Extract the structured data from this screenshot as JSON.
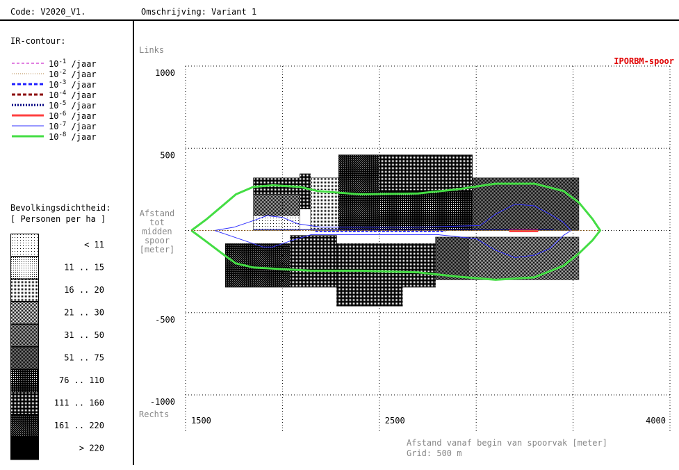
{
  "header": {
    "code": "Code: V2020_V1.",
    "description": "Omschrijving: Variant 1"
  },
  "legend_ir": {
    "title": "IR-contour:",
    "unit": "/jaar",
    "items": [
      {
        "base": "10",
        "exp": "-1",
        "color": "#c000c0",
        "style": "dash-thin"
      },
      {
        "base": "10",
        "exp": "-2",
        "color": "#b08040",
        "style": "dot-thin"
      },
      {
        "base": "10",
        "exp": "-3",
        "color": "#2020ff",
        "style": "dash-thick"
      },
      {
        "base": "10",
        "exp": "-4",
        "color": "#8b0000",
        "style": "dash-thick"
      },
      {
        "base": "10",
        "exp": "-5",
        "color": "#000080",
        "style": "dot-thick"
      },
      {
        "base": "10",
        "exp": "-6",
        "color": "#ff4040",
        "style": "solid-thick"
      },
      {
        "base": "10",
        "exp": "-7",
        "color": "#3030ff",
        "style": "solid-thin"
      },
      {
        "base": "10",
        "exp": "-8",
        "color": "#44dd44",
        "style": "solid-thick"
      }
    ]
  },
  "legend_density": {
    "title": "Bevolkingsdichtheid:",
    "subtitle": "[ Personen per ha ]",
    "classes": [
      {
        "label": "<  11",
        "pattern": "p1"
      },
      {
        "label": "11 ..  15",
        "pattern": "p2"
      },
      {
        "label": "16 ..  20",
        "pattern": "p3"
      },
      {
        "label": "21 ..  30",
        "pattern": "p4"
      },
      {
        "label": "31 ..  50",
        "pattern": "p5"
      },
      {
        "label": "51 ..  75",
        "pattern": "p6"
      },
      {
        "label": "76 .. 110",
        "pattern": "p7"
      },
      {
        "label": "111 .. 160",
        "pattern": "p8"
      },
      {
        "label": "161 .. 220",
        "pattern": "p9"
      },
      {
        "label": "> 220",
        "pattern": "p10"
      }
    ]
  },
  "chart_data": {
    "type": "area",
    "title": "IPORBM-spoor",
    "ylabel_top": "Links",
    "ylabel_bottom": "Rechts",
    "ylabel_mid": [
      "Afstand",
      "tot",
      "midden",
      "spoor",
      "[meter]"
    ],
    "xlabel": "Afstand vanaf begin van spoorvak  [meter]",
    "grid_note": "Grid: 500 m",
    "xlim": [
      1500,
      4000
    ],
    "ylim": [
      -1000,
      1000
    ],
    "x_ticks": [
      {
        "value": 1500,
        "label": "1500"
      },
      {
        "value": 2500,
        "label": "2500"
      },
      {
        "value": 4000,
        "label": "4000"
      }
    ],
    "y_ticks": [
      {
        "value": 1000,
        "label": "1000"
      },
      {
        "value": 500,
        "label": "500"
      },
      {
        "value": -500,
        "label": "-500"
      },
      {
        "value": -1000,
        "label": "-1000"
      }
    ],
    "grid_step": 500,
    "grid": true,
    "density_blocks": [
      {
        "x0": 1850,
        "x1": 2090,
        "y0": 320,
        "y1": 220,
        "pattern": "p8"
      },
      {
        "x0": 1850,
        "x1": 2090,
        "y0": 220,
        "y1": 90,
        "pattern": "p5"
      },
      {
        "x0": 1850,
        "x1": 2090,
        "y0": 90,
        "y1": 0,
        "pattern": "p1"
      },
      {
        "x0": 2090,
        "x1": 2145,
        "y0": 345,
        "y1": 130,
        "pattern": "p8"
      },
      {
        "x0": 2145,
        "x1": 2290,
        "y0": 320,
        "y1": 0,
        "pattern": "p3"
      },
      {
        "x0": 2290,
        "x1": 2500,
        "y0": 460,
        "y1": 0,
        "pattern": "p9"
      },
      {
        "x0": 2500,
        "x1": 2980,
        "y0": 460,
        "y1": 240,
        "pattern": "p8"
      },
      {
        "x0": 2500,
        "x1": 2980,
        "y0": 240,
        "y1": 0,
        "pattern": "p7"
      },
      {
        "x0": 2980,
        "x1": 3530,
        "y0": 320,
        "y1": 0,
        "pattern": "p6"
      },
      {
        "x0": 1705,
        "x1": 2040,
        "y0": -80,
        "y1": -345,
        "pattern": "p9"
      },
      {
        "x0": 2040,
        "x1": 2280,
        "y0": -30,
        "y1": -345,
        "pattern": "p8"
      },
      {
        "x0": 2280,
        "x1": 2620,
        "y0": -80,
        "y1": -460,
        "pattern": "p8"
      },
      {
        "x0": 2620,
        "x1": 2790,
        "y0": -80,
        "y1": -345,
        "pattern": "p8"
      },
      {
        "x0": 2790,
        "x1": 2960,
        "y0": -40,
        "y1": -300,
        "pattern": "p6"
      },
      {
        "x0": 2960,
        "x1": 3530,
        "y0": -40,
        "y1": -300,
        "pattern": "p5"
      }
    ],
    "contours": [
      {
        "exp": "-8",
        "color": "#44dd44",
        "width": 3,
        "points": [
          [
            1530,
            0
          ],
          [
            1610,
            70
          ],
          [
            1700,
            160
          ],
          [
            1760,
            220
          ],
          [
            1850,
            265
          ],
          [
            1950,
            275
          ],
          [
            2090,
            265
          ],
          [
            2180,
            240
          ],
          [
            2400,
            220
          ],
          [
            2700,
            225
          ],
          [
            2900,
            250
          ],
          [
            3100,
            285
          ],
          [
            3300,
            285
          ],
          [
            3450,
            240
          ],
          [
            3530,
            170
          ],
          [
            3600,
            70
          ],
          [
            3640,
            0
          ],
          [
            3600,
            -60
          ],
          [
            3530,
            -140
          ],
          [
            3450,
            -215
          ],
          [
            3300,
            -285
          ],
          [
            3100,
            -300
          ],
          [
            2900,
            -280
          ],
          [
            2700,
            -255
          ],
          [
            2400,
            -245
          ],
          [
            2150,
            -245
          ],
          [
            2000,
            -235
          ],
          [
            1850,
            -225
          ],
          [
            1760,
            -200
          ],
          [
            1700,
            -150
          ],
          [
            1610,
            -70
          ],
          [
            1530,
            0
          ]
        ]
      },
      {
        "exp": "-7",
        "color": "#3030ff",
        "width": 1,
        "points": [
          [
            1650,
            0
          ],
          [
            1750,
            20
          ],
          [
            1850,
            60
          ],
          [
            1920,
            90
          ],
          [
            2000,
            80
          ],
          [
            2080,
            40
          ],
          [
            2200,
            20
          ],
          [
            2700,
            20
          ],
          [
            3020,
            30
          ],
          [
            3100,
            100
          ],
          [
            3200,
            160
          ],
          [
            3300,
            150
          ],
          [
            3380,
            100
          ],
          [
            3450,
            50
          ],
          [
            3490,
            0
          ],
          [
            3450,
            -30
          ],
          [
            3380,
            -110
          ],
          [
            3300,
            -150
          ],
          [
            3200,
            -165
          ],
          [
            3100,
            -120
          ],
          [
            3000,
            -50
          ],
          [
            2800,
            -25
          ],
          [
            2300,
            -25
          ],
          [
            2150,
            -25
          ],
          [
            2050,
            -60
          ],
          [
            1950,
            -100
          ],
          [
            1900,
            -100
          ],
          [
            1800,
            -60
          ],
          [
            1700,
            -20
          ],
          [
            1650,
            0
          ]
        ]
      },
      {
        "exp": "-6",
        "color": "#ff4040",
        "width": 5,
        "points": [
          [
            3170,
            0
          ],
          [
            3320,
            0
          ]
        ]
      },
      {
        "exp": "-3",
        "color": "#2020ff",
        "width": 2,
        "dash": "4,2",
        "points": [
          [
            2170,
            -5
          ],
          [
            2840,
            -5
          ]
        ]
      },
      {
        "exp": "-2",
        "color": "#b08040",
        "width": 1,
        "dash": "2,2",
        "points": [
          [
            1530,
            0
          ],
          [
            3640,
            0
          ]
        ]
      },
      {
        "exp": "-5",
        "color": "#000080",
        "width": 1,
        "points": [
          [
            1850,
            5
          ],
          [
            3400,
            5
          ]
        ]
      }
    ]
  }
}
